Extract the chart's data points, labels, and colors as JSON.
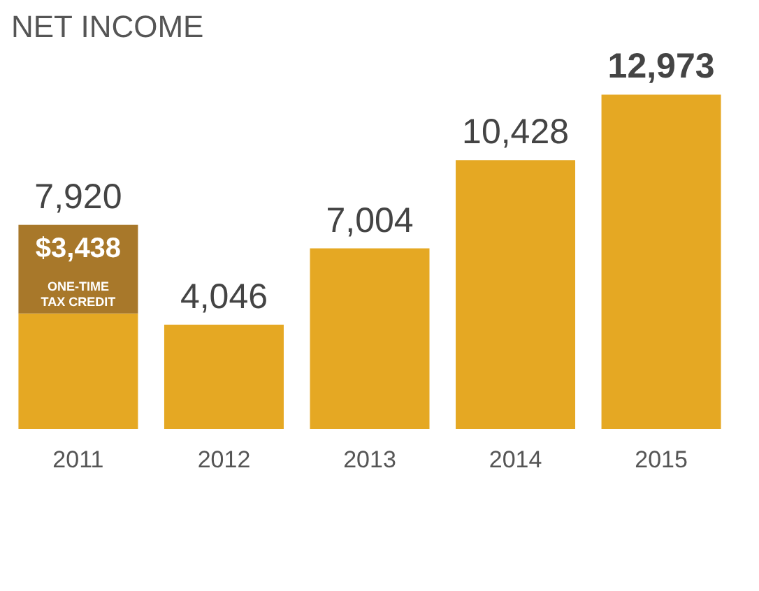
{
  "chart_data": {
    "type": "bar",
    "title": "NET INCOME",
    "stacked": true,
    "categories": [
      "2011",
      "2012",
      "2013",
      "2014",
      "2015"
    ],
    "series": [
      {
        "color": "#e5a823",
        "values": [
          4482,
          4046,
          7004,
          10428,
          12973
        ]
      },
      {
        "color": "#a8782a",
        "values": [
          3438,
          null,
          null,
          null,
          null
        ],
        "value_labels": [
          "$3,438",
          null,
          null,
          null,
          null
        ]
      }
    ],
    "totals": [
      "7,920",
      "4,046",
      "7,004",
      "10,428",
      "12,973"
    ],
    "annotations": [
      "ONE-TIME TAX CREDIT"
    ]
  }
}
